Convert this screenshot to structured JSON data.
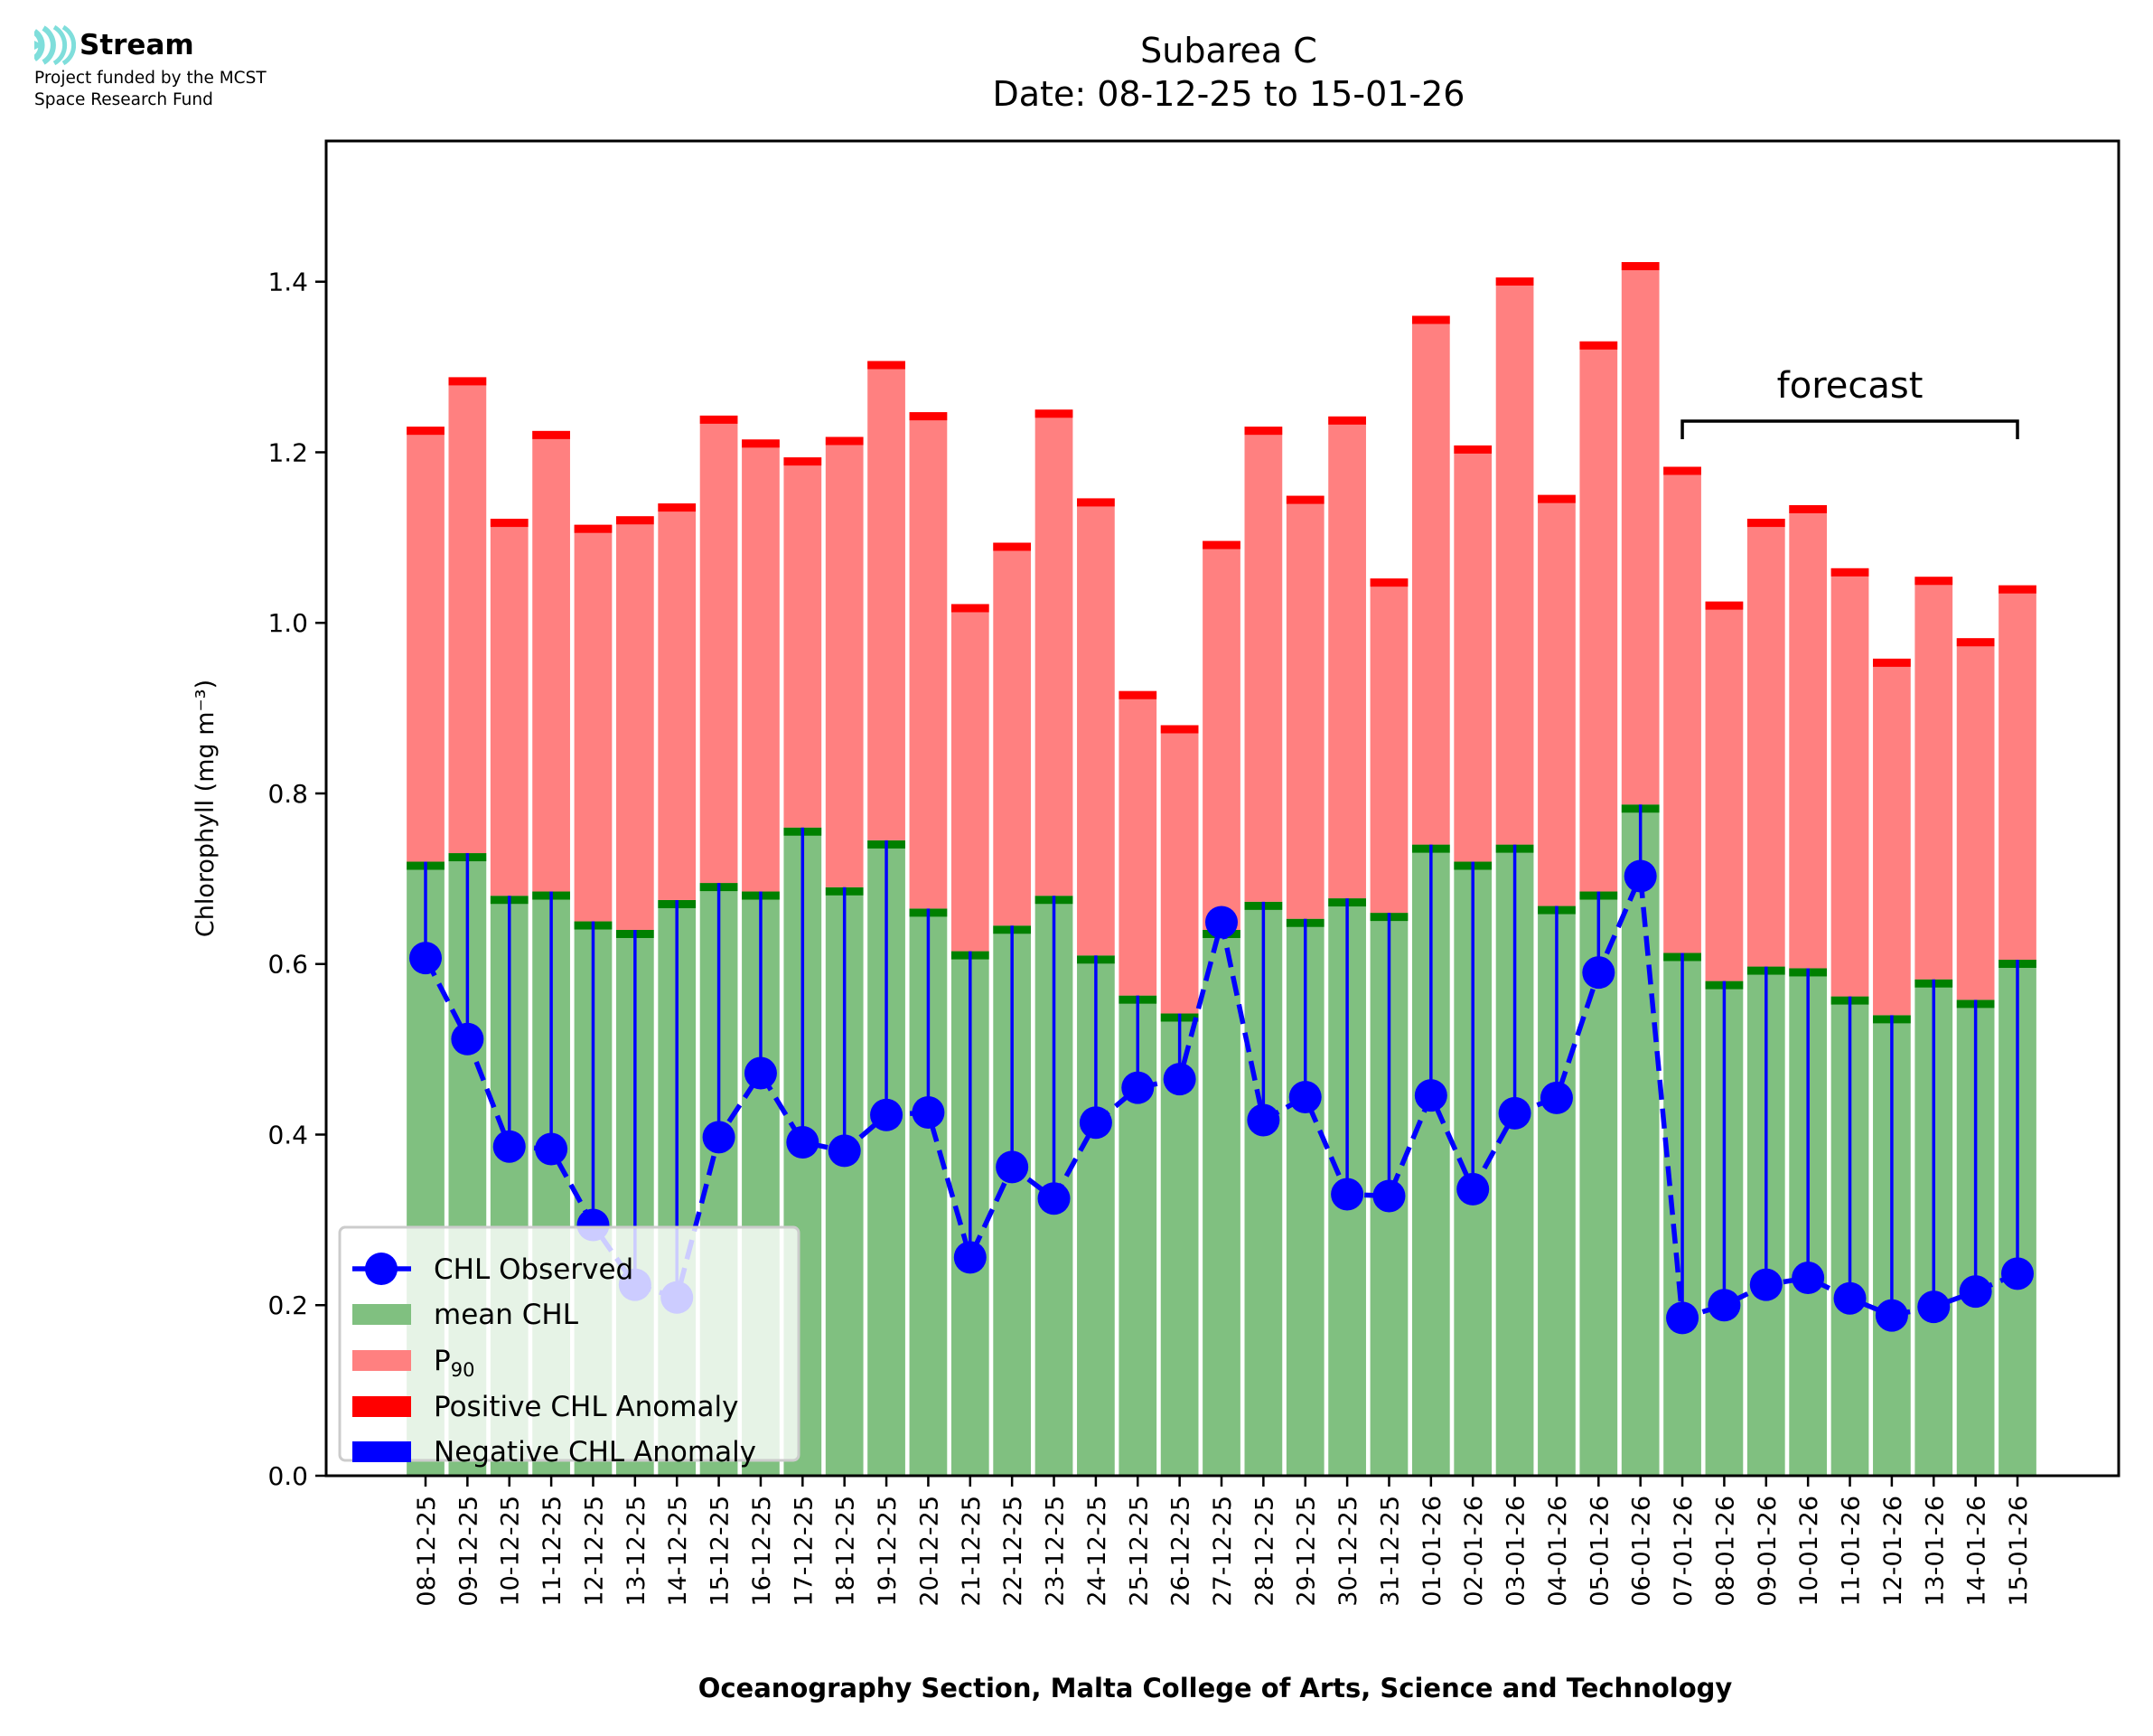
{
  "logo": {
    "name": "Stream",
    "icon": "stream-waves-icon",
    "icon_color": "#7fdedb",
    "subtitle_line1": "Project funded by the MCST",
    "subtitle_line2": "Space Research Fund"
  },
  "chart_data": {
    "type": "bar",
    "title": "Subarea C",
    "subtitle": "Date: 08-12-25 to 15-01-26",
    "xlabel": "Oceanography Section, Malta College of Arts, Science and Technology",
    "ylabel": "Chlorophyll (mg m⁻³)",
    "ylim": [
      0,
      1.565
    ],
    "yticks": [
      "0.0",
      "0.2",
      "0.4",
      "0.6",
      "0.8",
      "1.0",
      "1.2",
      "1.4"
    ],
    "ytick_values": [
      0,
      0.2,
      0.4,
      0.6,
      0.8,
      1.0,
      1.2,
      1.4
    ],
    "grid": false,
    "legend_position": "lower-left",
    "categories": [
      "08-12-25",
      "09-12-25",
      "10-12-25",
      "11-12-25",
      "12-12-25",
      "13-12-25",
      "14-12-25",
      "15-12-25",
      "16-12-25",
      "17-12-25",
      "18-12-25",
      "19-12-25",
      "20-12-25",
      "21-12-25",
      "22-12-25",
      "23-12-25",
      "24-12-25",
      "25-12-25",
      "26-12-25",
      "27-12-25",
      "28-12-25",
      "29-12-25",
      "30-12-25",
      "31-12-25",
      "01-01-26",
      "02-01-26",
      "03-01-26",
      "04-01-26",
      "05-01-26",
      "06-01-26",
      "07-01-26",
      "08-01-26",
      "09-01-26",
      "10-01-26",
      "11-01-26",
      "12-01-26",
      "13-01-26",
      "14-01-26",
      "15-01-26"
    ],
    "series": [
      {
        "name": "mean CHL",
        "color": "#80c080",
        "edge_color": "#008000",
        "values": [
          0.72,
          0.73,
          0.68,
          0.685,
          0.65,
          0.64,
          0.675,
          0.695,
          0.685,
          0.76,
          0.69,
          0.745,
          0.665,
          0.615,
          0.645,
          0.68,
          0.61,
          0.563,
          0.542,
          0.64,
          0.673,
          0.653,
          0.677,
          0.66,
          0.74,
          0.72,
          0.74,
          0.668,
          0.685,
          0.787,
          0.613,
          0.58,
          0.597,
          0.595,
          0.562,
          0.54,
          0.582,
          0.558,
          0.605
        ]
      },
      {
        "name": "P90",
        "color": "#ff8080",
        "edge_color": "#ff0000",
        "values": [
          1.23,
          1.288,
          1.122,
          1.225,
          1.115,
          1.125,
          1.14,
          1.243,
          1.215,
          1.194,
          1.218,
          1.307,
          1.247,
          1.022,
          1.094,
          1.25,
          1.146,
          0.92,
          0.88,
          1.096,
          1.23,
          1.149,
          1.242,
          1.052,
          1.36,
          1.208,
          1.405,
          1.15,
          1.33,
          1.423,
          1.183,
          1.025,
          1.122,
          1.138,
          1.064,
          0.958,
          1.054,
          0.982,
          1.044
        ]
      },
      {
        "name": "CHL Observed",
        "color": "#0000ff",
        "values": [
          0.607,
          0.512,
          0.386,
          0.383,
          0.294,
          0.224,
          0.209,
          0.397,
          0.472,
          0.391,
          0.381,
          0.423,
          0.426,
          0.256,
          0.362,
          0.325,
          0.414,
          0.455,
          0.465,
          0.649,
          0.417,
          0.444,
          0.33,
          0.328,
          0.446,
          0.336,
          0.425,
          0.443,
          0.59,
          0.703,
          0.185,
          0.2,
          0.224,
          0.232,
          0.208,
          0.188,
          0.198,
          0.216,
          0.237
        ]
      }
    ],
    "legend": [
      {
        "label": "CHL Observed",
        "kind": "line-marker",
        "color": "#0000ff"
      },
      {
        "label": "mean CHL",
        "kind": "patch",
        "color": "#80c080"
      },
      {
        "label": "P",
        "sub": "90",
        "kind": "patch",
        "color": "#ff8080"
      },
      {
        "label": "Positive CHL Anomaly",
        "kind": "patch",
        "color": "#ff0000"
      },
      {
        "label": "Negative CHL Anomaly",
        "kind": "patch",
        "color": "#0000ff"
      }
    ],
    "annotations": [
      {
        "text": "forecast",
        "from": "07-01-26",
        "to": "15-01-26"
      }
    ]
  }
}
